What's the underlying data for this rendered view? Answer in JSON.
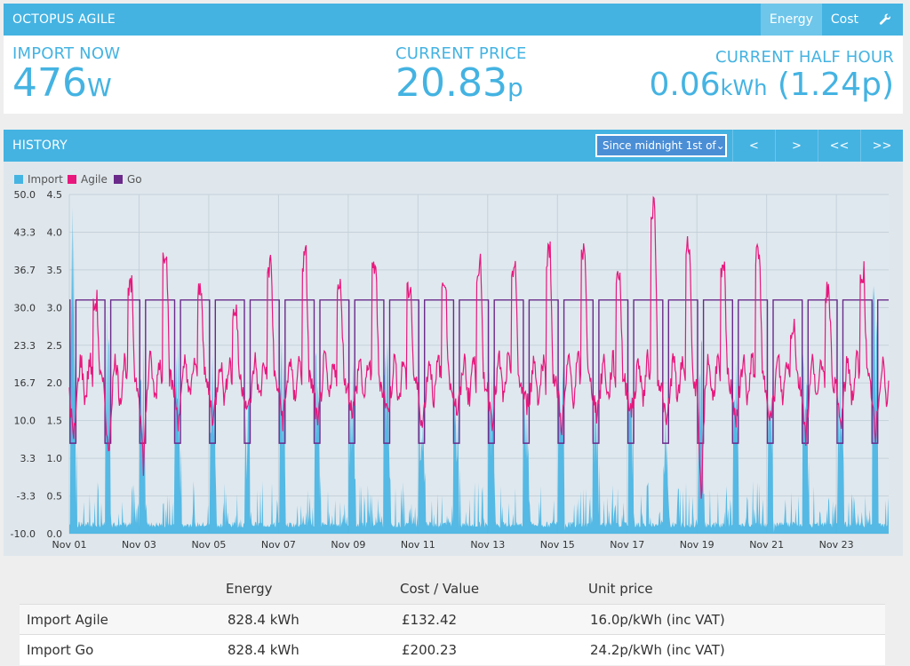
{
  "app": {
    "title": "OCTOPUS AGILE",
    "tabs": [
      "Energy",
      "Cost"
    ],
    "tool_icon": "wrench-icon"
  },
  "stats": {
    "import_now": {
      "label": "IMPORT NOW",
      "value": "476",
      "unit": "W"
    },
    "current_price": {
      "label": "CURRENT PRICE",
      "value": "20.83",
      "unit": "p"
    },
    "current_half_hour": {
      "label": "CURRENT HALF HOUR",
      "value": "0.06",
      "unit": "kWh",
      "extra": "(1.24p)"
    }
  },
  "history": {
    "title": "HISTORY",
    "range_select": "Since midnight 1st of",
    "nav": [
      "<",
      ">",
      "<<",
      ">>"
    ]
  },
  "chart_data": {
    "type": "line",
    "series": [
      {
        "name": "Import",
        "color": "#45b4e2",
        "kind": "area"
      },
      {
        "name": "Agile",
        "color": "#e8177d",
        "kind": "line"
      },
      {
        "name": "Go",
        "color": "#6a2a8a",
        "kind": "line",
        "high": 3.1,
        "low": 1.2
      }
    ],
    "y_left_ticks": [
      "50.0",
      "43.3",
      "36.7",
      "30.0",
      "23.3",
      "16.7",
      "10.0",
      "3.3",
      "-3.3",
      "-10.0"
    ],
    "y_right_ticks": [
      "4.5",
      "4.0",
      "3.5",
      "3.0",
      "2.5",
      "2.0",
      "1.5",
      "1.0",
      "0.5",
      "0.0"
    ],
    "ylim_left": [
      -10,
      50
    ],
    "ylim_right": [
      0,
      4.5
    ],
    "x_ticks": [
      "Nov 01",
      "Nov 03",
      "Nov 05",
      "Nov 07",
      "Nov 09",
      "Nov 11",
      "Nov 13",
      "Nov 15",
      "Nov 17",
      "Nov 19",
      "Nov 21",
      "Nov 23"
    ],
    "days": 23.5,
    "agile_daily_peak": [
      3.1,
      3.3,
      3.8,
      3.3,
      3.0,
      3.6,
      3.7,
      3.3,
      3.6,
      3.3,
      3.4,
      3.6,
      3.6,
      3.8,
      3.8,
      3.5,
      4.4,
      3.9,
      3.5,
      3.8,
      2.8,
      3.3,
      3.5,
      3.4
    ],
    "agile_daily_trough": [
      1.2,
      1.0,
      0.9,
      1.5,
      1.5,
      1.6,
      1.5,
      1.4,
      1.6,
      1.6,
      1.4,
      1.6,
      1.5,
      1.7,
      1.4,
      1.6,
      1.6,
      1.4,
      0.4,
      1.5,
      1.5,
      1.3,
      1.4,
      1.2
    ],
    "import_daily_peak": [
      4.7,
      3.2,
      2.6,
      2.8,
      2.6,
      2.0,
      2.6,
      2.9,
      2.4,
      2.6,
      2.3,
      2.0,
      2.6,
      2.3,
      2.6,
      2.4,
      2.1,
      1.8,
      2.6,
      2.6,
      2.1,
      2.7,
      2.6,
      3.5
    ],
    "grid": true,
    "legend": "top-left"
  },
  "summary": {
    "headers": [
      "",
      "Energy",
      "Cost / Value",
      "Unit price"
    ],
    "rows": [
      [
        "Import Agile",
        "828.4 kWh",
        "£132.42",
        "16.0p/kWh (inc VAT)"
      ],
      [
        "Import Go",
        "828.4 kWh",
        "£200.23",
        "24.2p/kWh (inc VAT)"
      ]
    ]
  }
}
